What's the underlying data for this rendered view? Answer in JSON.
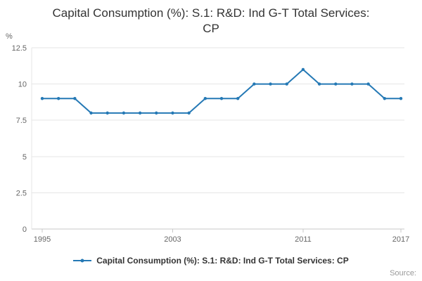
{
  "header": {
    "title_line1": "Capital Consumption (%): S.1: R&D: Ind G-T Total Services:",
    "title_line2": "CP"
  },
  "footer": {
    "source": "Source:"
  },
  "chart_data": {
    "type": "line",
    "title": "Capital Consumption (%): S.1: R&D: Ind G-T Total Services: CP",
    "series_name": "Capital Consumption (%): S.1: R&D: Ind G-T Total Services: CP",
    "ylabel": "%",
    "xlabel": "",
    "x": [
      1995,
      1996,
      1997,
      1998,
      1999,
      2000,
      2001,
      2002,
      2003,
      2004,
      2005,
      2006,
      2007,
      2008,
      2009,
      2010,
      2011,
      2012,
      2013,
      2014,
      2015,
      2016,
      2017
    ],
    "values": [
      9,
      9,
      9,
      8,
      8,
      8,
      8,
      8,
      8,
      8,
      9,
      9,
      9,
      10,
      10,
      10,
      11,
      10,
      10,
      10,
      10,
      9,
      9
    ],
    "ylim": [
      0,
      12.5
    ],
    "yticks": [
      0,
      2.5,
      5,
      7.5,
      10,
      12.5
    ],
    "ytick_labels": [
      "0",
      "2.5",
      "5",
      "7.5",
      "10",
      "12.5"
    ],
    "xticks": [
      1995,
      2003,
      2011,
      2017
    ],
    "grid": true,
    "legend_position": "bottom",
    "line_color": "#2579b5",
    "marker": "circle",
    "grid_color": "#e6e6e6",
    "axis_color": "#c8c8c8",
    "tick_text_color": "#666666"
  }
}
